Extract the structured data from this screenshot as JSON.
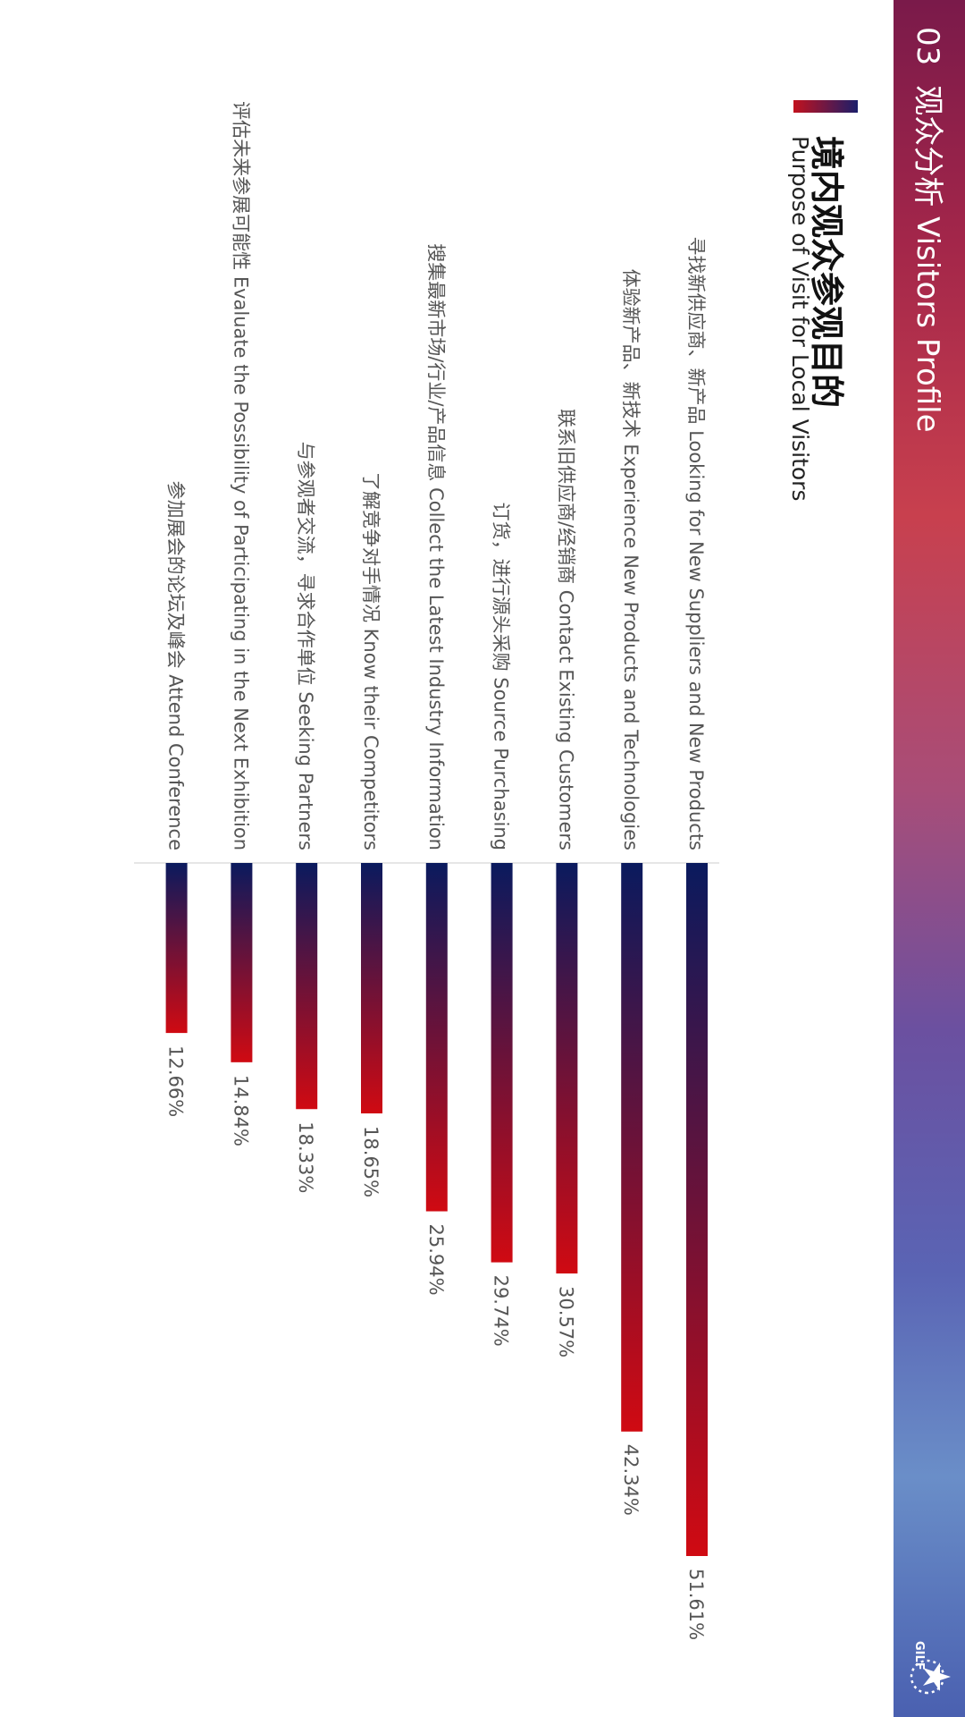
{
  "header": {
    "section_number": "03",
    "section_title": "观众分析 Visitors Profile"
  },
  "chart_data": {
    "type": "bar",
    "orientation": "horizontal",
    "title": "境内观众参观目的",
    "subtitle": "Purpose of Visit for Local Visitors",
    "categories": [
      "寻找新供应商、新产品 Looking for New Suppliers and New Products",
      "体验新产品、新技术 Experience New Products and Technologies",
      "联系旧供应商/经销商 Contact Existing Customers",
      "订货，进行源头采购 Source Purchasing",
      "搜集最新市场/行业/产品信息 Collect the Latest Industry Information",
      "了解竞争对手情况 Know their Competitors",
      "与参观者交流，寻求合作单位 Seeking Partners",
      "评估未来参展可能性 Evaluate the Possibility of Participating in the Next Exhibition",
      "参加展会的论坛及峰会 Attend Conference"
    ],
    "values": [
      51.61,
      42.34,
      30.57,
      29.74,
      25.94,
      18.65,
      18.33,
      14.84,
      12.66
    ],
    "value_labels": [
      "51.61%",
      "42.34%",
      "30.57%",
      "29.74%",
      "25.94%",
      "18.65%",
      "18.33%",
      "14.84%",
      "12.66%"
    ],
    "unit": "%",
    "bar_gradient": [
      "#0a1a5e",
      "#d00a12"
    ]
  },
  "colors": {
    "sidebar_top": "#7a1a4a",
    "sidebar_mid": "#c8404e",
    "sidebar_bottom": "#4a60b0",
    "label_text": "#555555"
  },
  "logo": {
    "text": "GILF",
    "icon": "star-circle-logo-icon"
  }
}
